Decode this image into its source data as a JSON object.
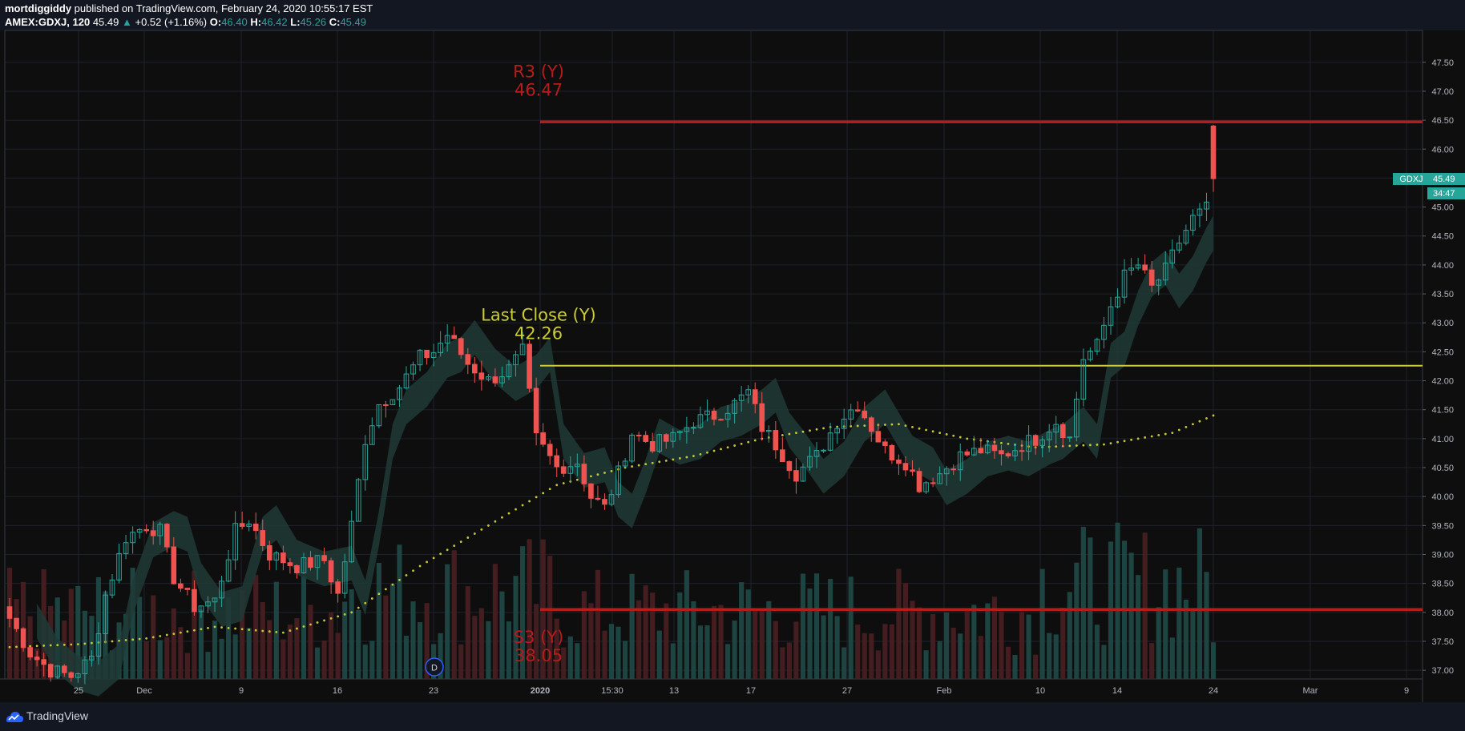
{
  "header": {
    "author": "mortdiggiddy",
    "published_text": " published on TradingView.com, February 24, 2020 10:55:17 EST",
    "symbol": "AMEX:GDXJ, 120",
    "last": "45.49",
    "change_arrow": "▲",
    "change": "+0.52 (+1.16%)",
    "o_label": "O:",
    "o_value": "46.40",
    "h_label": "H:",
    "h_value": "46.42",
    "l_label": "L:",
    "l_value": "45.26",
    "c_label": "C:",
    "c_value": "45.49"
  },
  "footer": {
    "brand": "TradingView"
  },
  "colors": {
    "background": "#131722",
    "up": "#26a69a",
    "down": "#ef5350",
    "pivot": "#b71c1c",
    "last_close": "#cccc33",
    "ma": "#c8c83c"
  },
  "chart_data": {
    "type": "candlestick",
    "price_axis": {
      "ticks": [
        "47.50",
        "47.00",
        "46.50",
        "46.00",
        "45.50",
        "45.00",
        "44.50",
        "44.00",
        "43.50",
        "43.00",
        "42.50",
        "42.00",
        "41.50",
        "41.00",
        "40.50",
        "40.00",
        "39.50",
        "39.00",
        "38.50",
        "38.00",
        "37.50",
        "37.00"
      ],
      "range": [
        36.85,
        48.05
      ]
    },
    "time_axis": {
      "labels": [
        {
          "label": "25",
          "bold": false
        },
        {
          "label": "Dec",
          "bold": false
        },
        {
          "label": "9",
          "bold": false
        },
        {
          "label": "16",
          "bold": false
        },
        {
          "label": "23",
          "bold": false
        },
        {
          "label": "2020",
          "bold": true
        },
        {
          "label": "15:30",
          "bold": false
        },
        {
          "label": "13",
          "bold": false
        },
        {
          "label": "17",
          "bold": false
        },
        {
          "label": "27",
          "bold": false
        },
        {
          "label": "Feb",
          "bold": false
        },
        {
          "label": "10",
          "bold": false
        },
        {
          "label": "14",
          "bold": false
        },
        {
          "label": "24",
          "bold": false
        },
        {
          "label": "Mar",
          "bold": false
        },
        {
          "label": "9",
          "bold": false
        }
      ]
    },
    "price_points": [
      {
        "x": 0,
        "y": 37.9
      },
      {
        "x": 3,
        "y": 37.3
      },
      {
        "x": 6,
        "y": 37.0
      },
      {
        "x": 9,
        "y": 36.9
      },
      {
        "x": 12,
        "y": 37.2
      },
      {
        "x": 14,
        "y": 38.3
      },
      {
        "x": 17,
        "y": 39.3
      },
      {
        "x": 20,
        "y": 39.5
      },
      {
        "x": 22,
        "y": 39.4
      },
      {
        "x": 24,
        "y": 38.6
      },
      {
        "x": 27,
        "y": 38.1
      },
      {
        "x": 30,
        "y": 38.2
      },
      {
        "x": 33,
        "y": 39.4
      },
      {
        "x": 35,
        "y": 39.6
      },
      {
        "x": 38,
        "y": 39.0
      },
      {
        "x": 42,
        "y": 38.8
      },
      {
        "x": 46,
        "y": 38.9
      },
      {
        "x": 48,
        "y": 38.3
      },
      {
        "x": 50,
        "y": 39.5
      },
      {
        "x": 52,
        "y": 41.0
      },
      {
        "x": 54,
        "y": 41.6
      },
      {
        "x": 57,
        "y": 41.9
      },
      {
        "x": 60,
        "y": 42.4
      },
      {
        "x": 62,
        "y": 42.5
      },
      {
        "x": 64,
        "y": 42.8
      },
      {
        "x": 67,
        "y": 42.3
      },
      {
        "x": 70,
        "y": 42.0
      },
      {
        "x": 73,
        "y": 42.2
      },
      {
        "x": 75,
        "y": 42.5
      },
      {
        "x": 77,
        "y": 41.0
      },
      {
        "x": 80,
        "y": 40.5
      },
      {
        "x": 83,
        "y": 40.6
      },
      {
        "x": 85,
        "y": 40.0
      },
      {
        "x": 87,
        "y": 39.8
      },
      {
        "x": 89,
        "y": 40.4
      },
      {
        "x": 91,
        "y": 41.1
      },
      {
        "x": 94,
        "y": 40.9
      },
      {
        "x": 97,
        "y": 41.0
      },
      {
        "x": 100,
        "y": 41.3
      },
      {
        "x": 103,
        "y": 41.4
      },
      {
        "x": 106,
        "y": 41.6
      },
      {
        "x": 108,
        "y": 41.8
      },
      {
        "x": 110,
        "y": 41.2
      },
      {
        "x": 112,
        "y": 40.9
      },
      {
        "x": 115,
        "y": 40.4
      },
      {
        "x": 118,
        "y": 40.7
      },
      {
        "x": 121,
        "y": 41.3
      },
      {
        "x": 124,
        "y": 41.6
      },
      {
        "x": 126,
        "y": 41.2
      },
      {
        "x": 128,
        "y": 40.8
      },
      {
        "x": 131,
        "y": 40.6
      },
      {
        "x": 133,
        "y": 40.2
      },
      {
        "x": 136,
        "y": 40.4
      },
      {
        "x": 139,
        "y": 40.7
      },
      {
        "x": 142,
        "y": 40.8
      },
      {
        "x": 145,
        "y": 40.7
      },
      {
        "x": 148,
        "y": 40.9
      },
      {
        "x": 150,
        "y": 41.0
      },
      {
        "x": 153,
        "y": 41.3
      },
      {
        "x": 155,
        "y": 41.0
      },
      {
        "x": 157,
        "y": 42.4
      },
      {
        "x": 159,
        "y": 42.6
      },
      {
        "x": 161,
        "y": 43.3
      },
      {
        "x": 163,
        "y": 43.8
      },
      {
        "x": 165,
        "y": 44.0
      },
      {
        "x": 167,
        "y": 43.6
      },
      {
        "x": 169,
        "y": 43.9
      },
      {
        "x": 171,
        "y": 44.4
      },
      {
        "x": 173,
        "y": 44.8
      },
      {
        "x": 175,
        "y": 44.97
      },
      {
        "x": 176,
        "y": 45.49
      }
    ],
    "last_candle": {
      "open": 46.4,
      "high": 46.42,
      "low": 45.26,
      "close": 45.49
    },
    "levels": [
      {
        "name": "R3 (Y)",
        "value": 46.47,
        "label": "46.47",
        "color": "#b71c1c"
      },
      {
        "name": "Last Close (Y)",
        "value": 42.26,
        "label": "42.26",
        "color": "#cccc33"
      },
      {
        "name": "S3 (Y)",
        "value": 38.05,
        "label": "38.05",
        "color": "#b71c1c"
      }
    ],
    "ma_points": [
      {
        "x": 0,
        "y": 37.4
      },
      {
        "x": 10,
        "y": 37.45
      },
      {
        "x": 20,
        "y": 37.55
      },
      {
        "x": 30,
        "y": 37.75
      },
      {
        "x": 40,
        "y": 37.65
      },
      {
        "x": 50,
        "y": 38.0
      },
      {
        "x": 60,
        "y": 38.8
      },
      {
        "x": 70,
        "y": 39.5
      },
      {
        "x": 80,
        "y": 40.2
      },
      {
        "x": 90,
        "y": 40.5
      },
      {
        "x": 100,
        "y": 40.7
      },
      {
        "x": 110,
        "y": 41.0
      },
      {
        "x": 120,
        "y": 41.2
      },
      {
        "x": 130,
        "y": 41.25
      },
      {
        "x": 140,
        "y": 41.0
      },
      {
        "x": 150,
        "y": 40.85
      },
      {
        "x": 160,
        "y": 40.9
      },
      {
        "x": 170,
        "y": 41.1
      },
      {
        "x": 176,
        "y": 41.4
      }
    ],
    "price_label": {
      "symbol": "GDXJ",
      "value": "45.49",
      "countdown": "34:47"
    },
    "event_marker": "D",
    "grid": true,
    "volume": true
  }
}
